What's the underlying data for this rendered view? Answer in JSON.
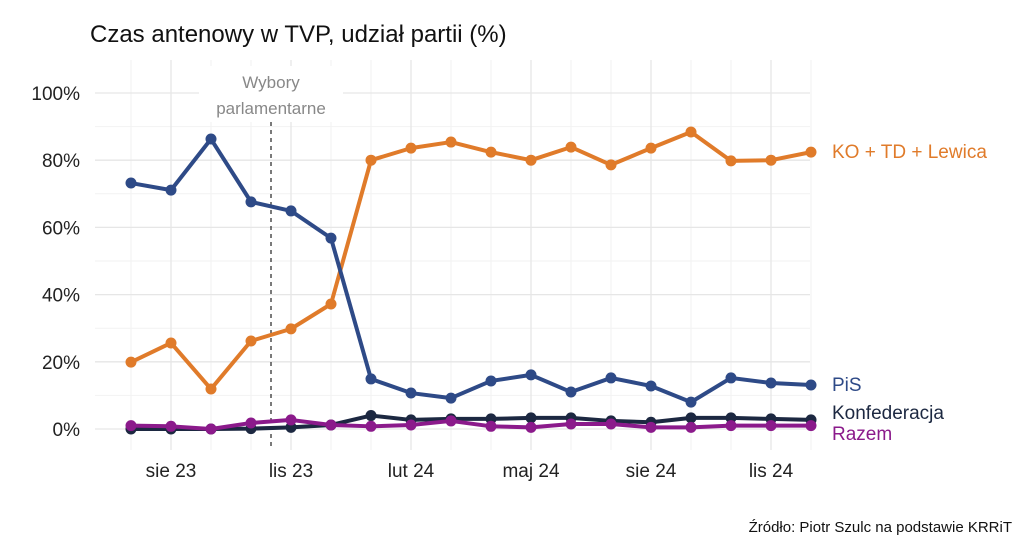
{
  "chart_data": {
    "type": "line",
    "title": "Czas antenowy w TVP, udział partii (%)",
    "caption": "Źródło: Piotr Szulc na podstawie KRRiT",
    "x": [
      "2023-07",
      "2023-08",
      "2023-09",
      "2023-10",
      "2023-11",
      "2023-12",
      "2024-01",
      "2024-02",
      "2024-03",
      "2024-04",
      "2024-05",
      "2024-06",
      "2024-07",
      "2024-08",
      "2024-09",
      "2024-10",
      "2024-11",
      "2024-12"
    ],
    "x_ticks": [
      {
        "label": "sie 23",
        "index": 1
      },
      {
        "label": "lis 23",
        "index": 4
      },
      {
        "label": "lut 24",
        "index": 7
      },
      {
        "label": "maj 24",
        "index": 10
      },
      {
        "label": "sie 24",
        "index": 13
      },
      {
        "label": "lis 24",
        "index": 16
      }
    ],
    "y_ticks": [
      "0%",
      "20%",
      "40%",
      "60%",
      "80%",
      "100%"
    ],
    "ylim": [
      0,
      100
    ],
    "grid": true,
    "annotation": {
      "label_lines": [
        "Wybory",
        "parlamentarne"
      ],
      "x_index": 3.5
    },
    "series": [
      {
        "name": "KO + TD + Lewica",
        "color": "#E07B2A",
        "values": [
          19.9,
          25.6,
          11.9,
          26.2,
          29.8,
          37.2,
          80.0,
          83.6,
          85.4,
          82.4,
          80.0,
          83.9,
          78.6,
          83.6,
          88.4,
          79.8,
          80.0,
          82.4
        ]
      },
      {
        "name": "PiS",
        "color": "#2E4A87",
        "values": [
          73.2,
          71.1,
          86.3,
          67.6,
          64.9,
          56.8,
          14.9,
          10.7,
          9.2,
          14.3,
          16.1,
          11.0,
          15.2,
          12.8,
          8.0,
          15.2,
          13.7,
          13.1
        ]
      },
      {
        "name": "Konfederacja",
        "color": "#1C2841",
        "values": [
          0.0,
          0.0,
          0.0,
          0.1,
          0.5,
          1.2,
          4.0,
          2.7,
          3.0,
          3.0,
          3.3,
          3.3,
          2.4,
          2.0,
          3.3,
          3.3,
          3.0,
          2.7
        ]
      },
      {
        "name": "Razem",
        "color": "#8B1A8B",
        "values": [
          1.0,
          0.8,
          0.0,
          1.8,
          2.7,
          1.2,
          0.8,
          1.2,
          2.4,
          0.8,
          0.5,
          1.5,
          1.5,
          0.5,
          0.5,
          1.0,
          1.0,
          1.0
        ]
      }
    ]
  }
}
